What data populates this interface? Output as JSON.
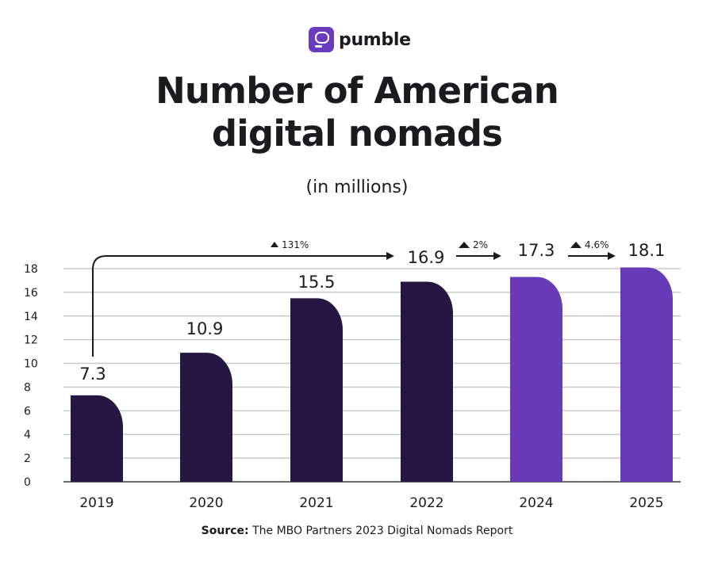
{
  "brand": {
    "name": "pumble",
    "color": "#6a3bbf"
  },
  "source": {
    "label": "Source:",
    "text": " The MBO Partners 2023 Digital Nomads Report"
  },
  "chart_data": {
    "type": "bar",
    "title": "Number of American digital nomads",
    "subtitle": "(in millions)",
    "categories": [
      "2019",
      "2020",
      "2021",
      "2022",
      "2024",
      "2025"
    ],
    "values": [
      7.3,
      10.9,
      15.5,
      16.9,
      17.3,
      18.1
    ],
    "value_labels": [
      "7.3",
      "10.9",
      "15.5",
      "16.9",
      "17.3",
      "18.1"
    ],
    "bar_colors": [
      "#261641",
      "#261641",
      "#261641",
      "#261641",
      "#673ab7",
      "#673ab7"
    ],
    "ylim": [
      0,
      18
    ],
    "yticks": [
      "0",
      "2",
      "4",
      "6",
      "8",
      "10",
      "12",
      "14",
      "16",
      "18"
    ],
    "grid": true,
    "annotations": [
      {
        "from": "2019",
        "to": "2022",
        "label": "131%"
      },
      {
        "from": "2022",
        "to": "2024",
        "label": "2%"
      },
      {
        "from": "2024",
        "to": "2025",
        "label": "4.6%"
      }
    ]
  }
}
